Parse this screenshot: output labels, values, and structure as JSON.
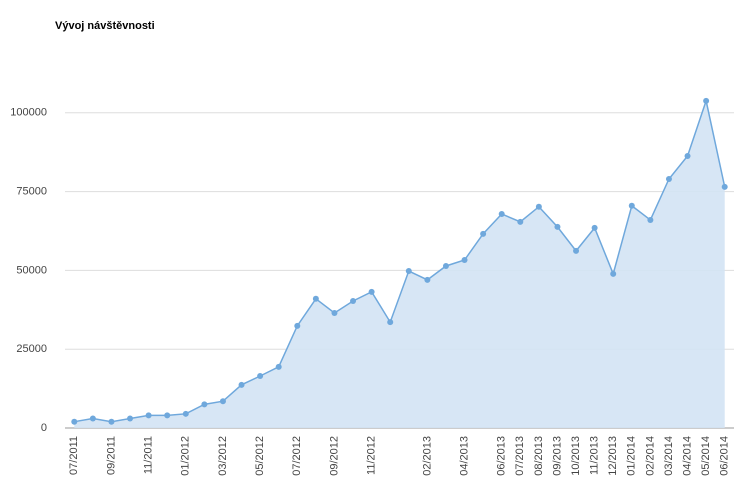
{
  "chart_data": {
    "type": "area",
    "title": "Vývoj návštěvnosti",
    "categories": [
      "07/2011",
      null,
      "09/2011",
      null,
      "11/2011",
      null,
      "01/2012",
      null,
      "03/2012",
      null,
      "05/2012",
      null,
      "07/2012",
      null,
      "09/2012",
      null,
      "11/2012",
      null,
      null,
      "02/2013",
      null,
      "04/2013",
      null,
      "06/2013",
      "07/2013",
      "08/2013",
      "09/2013",
      "10/2013",
      "11/2013",
      "12/2013",
      "01/2014",
      "02/2014",
      "03/2014",
      "04/2014",
      "05/2014",
      "06/2014"
    ],
    "values": [
      2000,
      3000,
      2000,
      3000,
      4000,
      4000,
      4500,
      7500,
      8500,
      13700,
      16500,
      19400,
      32400,
      41000,
      36500,
      40300,
      43200,
      33600,
      49800,
      47000,
      51400,
      53300,
      61600,
      67900,
      65400,
      70200,
      63800,
      56200,
      63500,
      48900,
      70500,
      66000,
      79000,
      86300,
      103800,
      76500
    ],
    "color": "#6fa8dc",
    "fill": "#d3e3f4",
    "ylim": [
      0,
      125000
    ],
    "yticks": [
      0,
      25000,
      50000,
      75000,
      100000
    ],
    "grid": true
  }
}
